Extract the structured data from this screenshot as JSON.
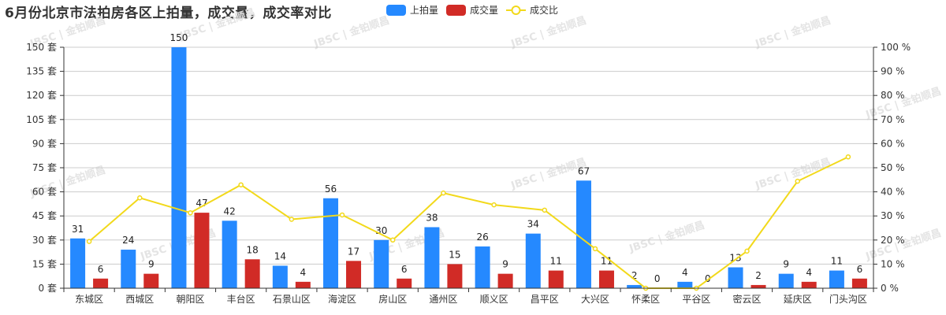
{
  "title": "6月份北京市法拍房各区上拍量，成交量，成交率对比",
  "legend": [
    {
      "label": "上拍量",
      "color": "#2589ff",
      "type": "bar"
    },
    {
      "label": "成交量",
      "color": "#d12b26",
      "type": "bar"
    },
    {
      "label": "成交比",
      "color": "#f2d91b",
      "type": "line"
    }
  ],
  "watermark": "JBSC | 金铂顺昌",
  "chart_data": {
    "type": "bar",
    "title": "6月份北京市法拍房各区上拍量，成交量，成交率对比",
    "categories": [
      "东城区",
      "西城区",
      "朝阳区",
      "丰台区",
      "石景山区",
      "海淀区",
      "房山区",
      "通州区",
      "顺义区",
      "昌平区",
      "大兴区",
      "怀柔区",
      "平谷区",
      "密云区",
      "延庆区",
      "门头沟区"
    ],
    "series": [
      {
        "name": "上拍量",
        "type": "bar",
        "axis": "left",
        "color": "#2589ff",
        "values": [
          31,
          24,
          150,
          42,
          14,
          56,
          30,
          38,
          26,
          34,
          67,
          2,
          4,
          13,
          9,
          11
        ]
      },
      {
        "name": "成交量",
        "type": "bar",
        "axis": "left",
        "color": "#d12b26",
        "values": [
          6,
          9,
          47,
          18,
          4,
          17,
          6,
          15,
          9,
          11,
          11,
          0,
          0,
          2,
          4,
          6
        ]
      },
      {
        "name": "成交比",
        "type": "line",
        "axis": "right",
        "color": "#f2d91b",
        "values": [
          19.4,
          37.5,
          31.3,
          42.9,
          28.6,
          30.4,
          20.0,
          39.5,
          34.6,
          32.4,
          16.4,
          0,
          0,
          15.4,
          44.4,
          54.5
        ]
      }
    ],
    "y_left": {
      "min": 0,
      "max": 150,
      "interval": 15,
      "unit": "套",
      "ticks": [
        "0 套",
        "15 套",
        "30 套",
        "45 套",
        "60 套",
        "75 套",
        "90 套",
        "105 套",
        "120 套",
        "135 套",
        "150 套"
      ]
    },
    "y_right": {
      "min": 0,
      "max": 100,
      "interval": 10,
      "unit": "%",
      "ticks": [
        "0 %",
        "10 %",
        "20 %",
        "30 %",
        "40 %",
        "50 %",
        "60 %",
        "70 %",
        "80 %",
        "90 %",
        "100 %"
      ]
    },
    "xlabel": "",
    "ylabel": "",
    "grid": true,
    "legend_position": "top"
  }
}
